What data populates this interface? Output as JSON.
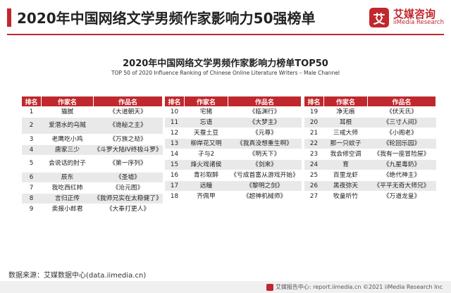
{
  "header": {
    "title": "2020年中国网络文学男频作家影响力50强榜单",
    "logo_mark": "艾",
    "logo_cn": "艾媒咨询",
    "logo_en": "iiMedia Research"
  },
  "chart_title": "2020年中国网络文学男频作家影响力榜单TOP50",
  "chart_subtitle": "TOP 50 of 2020 Influence Ranking of Chinese Online Literature Writers – Male Channel",
  "columns": [
    "排名",
    "作家名",
    "作品名"
  ],
  "chart_data": {
    "type": "table",
    "tables": [
      {
        "rows": [
          {
            "rank": "1",
            "author": "猫腻",
            "work": "《大道朝天》"
          },
          {
            "rank": "2",
            "author": "爱潜水的乌贼",
            "work": "《诡秘之主》"
          },
          {
            "rank": "3",
            "author": "老鹰吃小鸡",
            "work": "《万族之劫》"
          },
          {
            "rank": "4",
            "author": "唐家三少",
            "work": "《斗罗大陆IV终极斗罗》"
          },
          {
            "rank": "5",
            "author": "会说话的肘子",
            "work": "《第一序列》"
          },
          {
            "rank": "6",
            "author": "辰东",
            "work": "《圣墟》"
          },
          {
            "rank": "7",
            "author": "我吃西红柿",
            "work": "《沧元图》"
          },
          {
            "rank": "8",
            "author": "言归正传",
            "work": "《我师兄实在太稳健了》"
          },
          {
            "rank": "9",
            "author": "卖报小郎君",
            "work": "《大奉打更人》"
          }
        ]
      },
      {
        "rows": [
          {
            "rank": "10",
            "author": "宅猪",
            "work": "《临渊行》"
          },
          {
            "rank": "11",
            "author": "忘语",
            "work": "《大梦主》"
          },
          {
            "rank": "12",
            "author": "天蚕土豆",
            "work": "《元尊》"
          },
          {
            "rank": "13",
            "author": "柳岸花又明",
            "work": "《我真没想重生啊》"
          },
          {
            "rank": "14",
            "author": "孑与2",
            "work": "《明天下》"
          },
          {
            "rank": "15",
            "author": "烽火戏诸侯",
            "work": "《剑来》"
          },
          {
            "rank": "16",
            "author": "青衫取醉",
            "work": "《亏成首富从游戏开始》"
          },
          {
            "rank": "17",
            "author": "远瞳",
            "work": "《黎明之剑》"
          },
          {
            "rank": "18",
            "author": "齐佩甲",
            "work": "《超神机械师》"
          }
        ]
      },
      {
        "rows": [
          {
            "rank": "19",
            "author": "净无痕",
            "work": "《伏天氏》"
          },
          {
            "rank": "20",
            "author": "耳根",
            "work": "《三寸人间》"
          },
          {
            "rank": "21",
            "author": "三戒大师",
            "work": "《小阁老》"
          },
          {
            "rank": "22",
            "author": "那一只蚊子",
            "work": "《轮回乐园》"
          },
          {
            "rank": "23",
            "author": "我会修空调",
            "work": "《我有一座冒险屋》"
          },
          {
            "rank": "24",
            "author": "育",
            "work": "《九星毒奶》"
          },
          {
            "rank": "25",
            "author": "百里龙虾",
            "work": "《绝代神主》"
          },
          {
            "rank": "26",
            "author": "黑夜弥天",
            "work": "《平平无奇大师兄》"
          },
          {
            "rank": "27",
            "author": "牧童听竹",
            "work": "《万道龙皇》"
          }
        ]
      }
    ]
  },
  "footer": {
    "source": "数据来源：艾媒数据中心(data.iimedia.cn)",
    "copyright": "艾媒报告中心: report.iimedia.cn  ©2021  iiMedia Research  Inc"
  }
}
